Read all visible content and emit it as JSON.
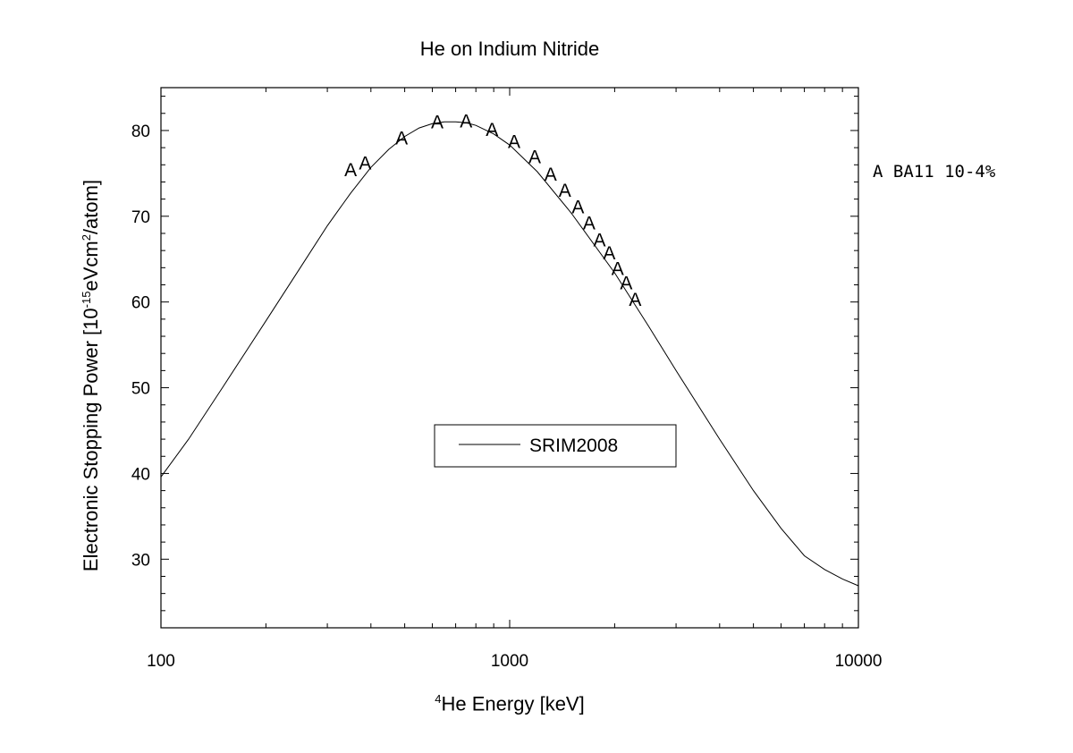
{
  "title": "He on Indium Nitride",
  "ylabel": {
    "pre": "Electronic Stopping Power [10",
    "exp1": "-15",
    "mid": "eVcm",
    "exp2": "2",
    "post": "/atom]"
  },
  "xlabel": {
    "sup": "4",
    "text": "He Energy [keV]"
  },
  "side_legend": "A BA11 10-4%",
  "chart_data": {
    "type": "scatter",
    "title": "He on Indium Nitride",
    "xlabel": "4He Energy [keV]",
    "ylabel": "Electronic Stopping Power [10-15eVcm2/atom]",
    "x_scale": "log",
    "xlim": [
      100,
      10000
    ],
    "ylim": [
      22,
      85
    ],
    "x_ticks": [
      100,
      1000,
      10000
    ],
    "x_tick_labels": [
      "100",
      "1000",
      "10000"
    ],
    "y_ticks": [
      30,
      40,
      50,
      60,
      70,
      80
    ],
    "y_tick_labels": [
      "30",
      "40",
      "50",
      "60",
      "70",
      "80"
    ],
    "grid": false,
    "series": [
      {
        "name": "SRIM2008",
        "style": "line",
        "color": "#000000",
        "x": [
          100,
          120,
          150,
          200,
          250,
          300,
          350,
          400,
          450,
          500,
          550,
          600,
          650,
          700,
          750,
          800,
          900,
          1000,
          1200,
          1500,
          2000,
          2500,
          3000,
          4000,
          5000,
          6000,
          7000,
          8000,
          9000,
          10000
        ],
        "y": [
          39.6,
          44.0,
          50.0,
          57.8,
          63.9,
          68.9,
          72.7,
          75.7,
          77.8,
          79.3,
          80.3,
          80.8,
          81.0,
          81.0,
          80.9,
          80.6,
          79.6,
          78.3,
          75.2,
          70.4,
          63.4,
          57.2,
          52.0,
          44.0,
          38.0,
          33.6,
          30.4,
          28.8,
          27.7,
          26.9
        ]
      },
      {
        "name": "BA11 10-4%",
        "style": "marker",
        "marker": "A",
        "color": "#000000",
        "x": [
          350,
          385,
          490,
          620,
          750,
          890,
          1030,
          1180,
          1310,
          1440,
          1570,
          1690,
          1810,
          1930,
          2040,
          2160,
          2290
        ],
        "y": [
          75.5,
          76.3,
          79.2,
          81.1,
          81.2,
          80.2,
          78.8,
          77.0,
          75.0,
          73.1,
          71.2,
          69.3,
          67.3,
          65.8,
          64.0,
          62.3,
          60.4
        ]
      }
    ],
    "legend": {
      "entries": [
        "SRIM2008"
      ],
      "placement": "center"
    }
  }
}
